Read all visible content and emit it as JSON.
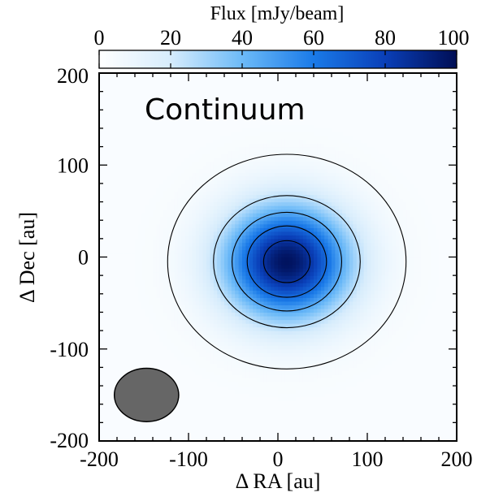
{
  "chart_data": {
    "type": "heatmap",
    "panel_label": "Continuum",
    "xlabel": "Δ RA [au]",
    "ylabel": "Δ Dec [au]",
    "xlim": [
      -200,
      200
    ],
    "ylim": [
      -200,
      200
    ],
    "x_ticks": [
      -200,
      -100,
      0,
      100,
      200
    ],
    "y_ticks": [
      -200,
      -100,
      0,
      100,
      200
    ],
    "colorbar": {
      "label": "Flux [mJy/beam]",
      "range": [
        0,
        100
      ],
      "ticks": [
        0,
        20,
        40,
        60,
        80,
        100
      ],
      "position": "top",
      "colors": [
        "#ffffff",
        "#d6ecfc",
        "#6cbaf8",
        "#1a7ae8",
        "#0a3fb8",
        "#000e55"
      ]
    },
    "emission": {
      "center": [
        10,
        -5
      ],
      "sigma_x": 48,
      "sigma_y": 42,
      "peak": 95,
      "background": 3
    },
    "contour_levels": [
      5,
      25,
      45,
      65,
      85
    ],
    "beam": {
      "center": [
        -147,
        -150
      ],
      "major_axis": 72,
      "minor_axis": 58,
      "fill": "#666666"
    }
  }
}
